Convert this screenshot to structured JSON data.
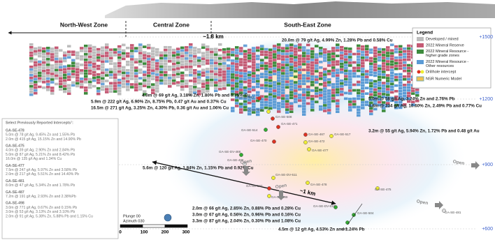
{
  "zones": [
    "North-West Zone",
    "Central Zone",
    "South-East Zone"
  ],
  "distances": [
    "~1.8 km",
    "~1 km"
  ],
  "elevations": [
    "+1500",
    "+1200",
    "+900",
    "+600"
  ],
  "legend": {
    "title": "Legend",
    "items": [
      "Developed / mined",
      "2022 Mineral Reserve",
      "2022 Mineral Resource - higher grade zones",
      "2022 Mineral Resource - Other resources",
      "Drillhole intercept",
      "NSR Numeric Model"
    ]
  },
  "intercepts": [
    "20.0m @ 79 g/t Ag, 4.99% Zn, 1.28% Pb and 0.58% Cu",
    "4.0m @ 69 g/t Ag, 3.18% Zn, 1.80% Pb and 0.75% Cu",
    "5.9m @ 222 g/t Ag, 6.90% Zn, 8.75% Pb, 0.47 g/t Au and 0.37% Cu",
    "16.5m @ 271 g/t Ag, 3.25% Zn, 4.30% Pb, 0.36 g/t Au and 1.06% Cu",
    "5.0m @ 58 g/t Ag, 3.24% Zn and 2.76% Pb",
    "4.8m @ 234 g/t Ag, 10.60% Zn, 2.49% Pb and 0.77% Cu",
    "3.2m @ 55 g/t Ag, 5.94% Zn, 1.72% Pb and 0.48 g/t Au",
    "5.6m @ 120 g/t Ag, 1.84% Zn, 1.15% Pb and 0.92% Cu",
    "2.0m @ 66 g/t Ag, 2.85% Zn, 0.88% Pb and 0.28% Cu",
    "3.0m @ 67 g/t Ag, 0.56% Zn, 0.96% Pb and 0.16% Cu",
    "3.3m @ 87 g/t Ag, 2.04% Zn, 0.30% Pb and 1.08% Cu",
    "4.5m @ 12 g/t Ag, 4.53% Zn and 1.24% Pb"
  ],
  "drillholes": [
    "GA-SE-512",
    "GA-SE-509",
    "GA-SE-508",
    "GA-SE-514",
    "GA-SE-471",
    "GA-SE-470",
    "GA-SE-467",
    "GA-SE-472",
    "GA-SE-517",
    "GA-SE-477",
    "GA-SE-DV-488",
    "GA-SE-486",
    "GA-SE-DV-511",
    "GA-SE-507",
    "GA-SE-478",
    "GA-SE-489",
    "GA-SE-475",
    "GA-SE-DV-510",
    "GA-SE-504",
    "GA-SE-481",
    "NSV"
  ],
  "open_labels": [
    "Open",
    "Open",
    "Open",
    "Open"
  ],
  "sidebar": {
    "title": "Select Previously Reported Intercepts¹:",
    "groups": [
      {
        "hole": "GA-SE-478",
        "intercepts": [
          "5.0m @ 78 g/t Ag, 9.45% Zn and 1.55% Pb",
          "2.0m @ 415 g/t Ag, 15.15% Zn and 14.90% Pb"
        ]
      },
      {
        "hole": "GA-SE-475",
        "intercepts": [
          "4.0m @ 39 g/t Ag, 2.90% Zn and 2.84% Pb",
          "5.0m @ 87 g/t Ag, 5.21% Zn and 8.42% Pb",
          "16.0m @ 135 g/t Ag and 1.34% Cu"
        ]
      },
      {
        "hole": "GA-SE-477",
        "intercepts": [
          "7.5m @ 247 g/t Ag, 5.97% Zn and 3.58% Pb",
          "2.0m @ 217 g/t Ag, 5.51% Zn and 14.40% Pb"
        ]
      },
      {
        "hole": "GA-SE-481",
        "intercepts": [
          "8.0m @ 47 g/t Ag, 5.34% Zn and 1.78% Pb"
        ]
      },
      {
        "hole": "GA-SE-487",
        "intercepts": [
          "7.2m @ 191 g/t Ag, 2.93% Zn and 2.38%Pb"
        ]
      },
      {
        "hole": "GA-SE-498",
        "intercepts": [
          "3.0m @ 771 g/t Ag, 0.67% Zn and 0.15% Pb",
          "3.0m @ 53 g/t Ag, 3.13% Zn and 3.10% Pb",
          "2.0m @ 91 g/t Ag, 5.38% Zn, 5.88% Pb and 1.15% Cu"
        ]
      }
    ]
  },
  "orientation": [
    "Plunge 00",
    "Azimuth 030"
  ],
  "scale": [
    0,
    100,
    200,
    300
  ]
}
